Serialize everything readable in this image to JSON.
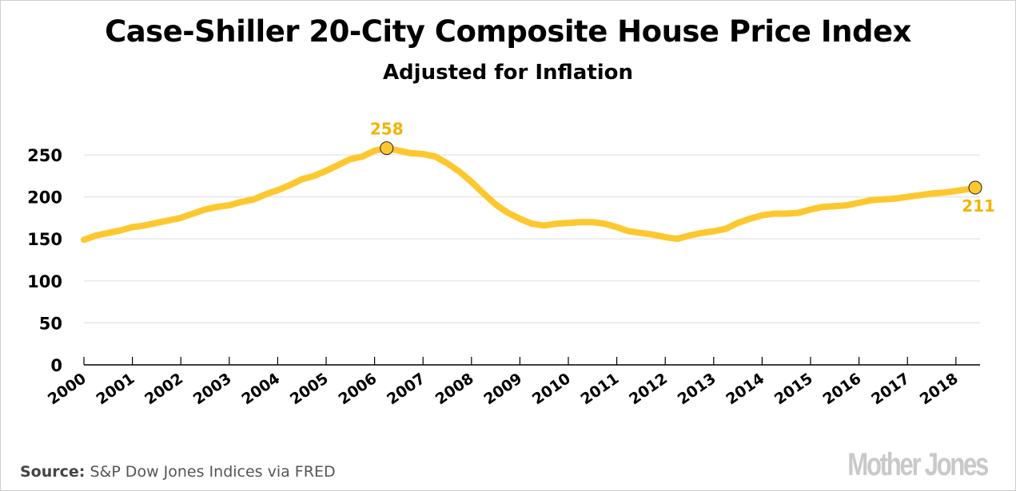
{
  "chart_data": {
    "type": "line",
    "title": "Case-Shiller 20-City Composite House Price Index",
    "subtitle": "Adjusted for Inflation",
    "xlabel": "",
    "ylabel": "",
    "ylim": [
      0,
      250
    ],
    "xlim": [
      2000,
      2018.5
    ],
    "yticks": [
      "0",
      "50",
      "100",
      "150",
      "200",
      "250"
    ],
    "ytick_values": [
      0,
      50,
      100,
      150,
      200,
      250
    ],
    "xticks": [
      "2000",
      "2001",
      "2002",
      "2003",
      "2004",
      "2005",
      "2006",
      "2007",
      "2008",
      "2009",
      "2010",
      "2011",
      "2012",
      "2013",
      "2014",
      "2015",
      "2016",
      "2017",
      "2018"
    ],
    "grid": true,
    "line_color": "#fdc82f",
    "series": [
      {
        "name": "Case-Shiller 20-City Composite (inflation-adjusted)",
        "x": [
          2000.0,
          2000.25,
          2000.5,
          2000.75,
          2001.0,
          2001.25,
          2001.5,
          2001.75,
          2002.0,
          2002.25,
          2002.5,
          2002.75,
          2003.0,
          2003.25,
          2003.5,
          2003.75,
          2004.0,
          2004.25,
          2004.5,
          2004.75,
          2005.0,
          2005.25,
          2005.5,
          2005.75,
          2006.0,
          2006.25,
          2006.5,
          2006.75,
          2007.0,
          2007.25,
          2007.5,
          2007.75,
          2008.0,
          2008.25,
          2008.5,
          2008.75,
          2009.0,
          2009.25,
          2009.5,
          2009.75,
          2010.0,
          2010.25,
          2010.5,
          2010.75,
          2011.0,
          2011.25,
          2011.5,
          2011.75,
          2012.0,
          2012.25,
          2012.5,
          2012.75,
          2013.0,
          2013.25,
          2013.5,
          2013.75,
          2014.0,
          2014.25,
          2014.5,
          2014.75,
          2015.0,
          2015.25,
          2015.5,
          2015.75,
          2016.0,
          2016.25,
          2016.5,
          2016.75,
          2017.0,
          2017.25,
          2017.5,
          2017.75,
          2018.0,
          2018.25,
          2018.4
        ],
        "values": [
          149,
          154,
          157,
          160,
          164,
          166,
          169,
          172,
          175,
          180,
          185,
          188,
          190,
          194,
          197,
          203,
          208,
          214,
          221,
          225,
          231,
          238,
          245,
          248,
          255,
          258,
          255,
          252,
          251,
          248,
          240,
          230,
          218,
          204,
          191,
          181,
          174,
          168,
          166,
          168,
          169,
          170,
          170,
          168,
          164,
          159,
          157,
          155,
          152,
          150,
          154,
          157,
          159,
          162,
          169,
          174,
          178,
          180,
          180,
          181,
          185,
          188,
          189,
          190,
          193,
          196,
          197,
          198,
          200,
          202,
          204,
          205,
          207,
          209,
          211
        ]
      }
    ],
    "annotations": [
      {
        "label": "258",
        "x": 2006.25,
        "y": 258,
        "position": "above"
      },
      {
        "label": "211",
        "x": 2018.4,
        "y": 211,
        "position": "below"
      }
    ],
    "legend": "none"
  },
  "footer": {
    "source_label": "Source:",
    "source_text": "S&P Dow Jones Indices via FRED",
    "logo": "Mother Jones"
  }
}
